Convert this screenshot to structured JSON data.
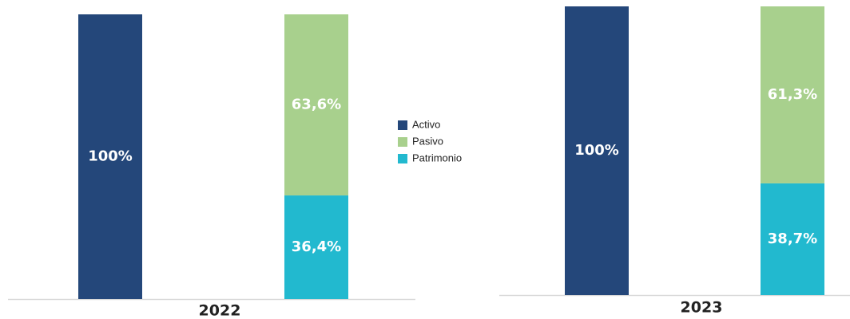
{
  "legend": [
    {
      "name": "Activo",
      "color": "#24477a"
    },
    {
      "name": "Pasivo",
      "color": "#a8d08d"
    },
    {
      "name": "Patrimonio",
      "color": "#22b9cf"
    }
  ],
  "chart_data": [
    {
      "type": "bar",
      "stacked": true,
      "xlabel": "2022",
      "categories": [
        null,
        null
      ],
      "ylim": [
        0,
        100
      ],
      "series": [
        {
          "values": [
            100,
            null
          ],
          "value_labels": [
            "100%",
            null
          ]
        },
        {
          "values": [
            null,
            63.6
          ],
          "value_labels": [
            null,
            "63,6%"
          ]
        },
        {
          "values": [
            null,
            36.4
          ],
          "value_labels": [
            null,
            "36,4%"
          ]
        }
      ]
    },
    {
      "type": "bar",
      "stacked": true,
      "xlabel": "2023",
      "categories": [
        null,
        null
      ],
      "ylim": [
        0,
        100
      ],
      "series": [
        {
          "values": [
            100,
            null
          ],
          "value_labels": [
            "100%",
            null
          ]
        },
        {
          "values": [
            null,
            61.3
          ],
          "value_labels": [
            null,
            "61,3%"
          ]
        },
        {
          "values": [
            null,
            38.7
          ],
          "value_labels": [
            null,
            "38,7%"
          ]
        }
      ]
    }
  ]
}
